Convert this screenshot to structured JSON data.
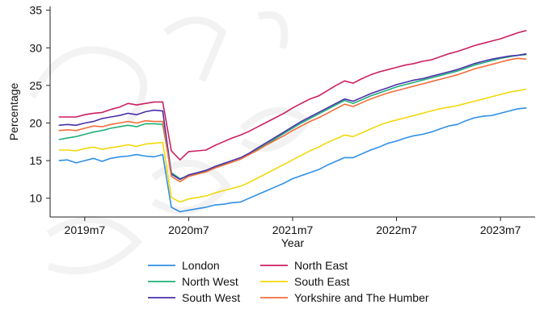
{
  "chart_data": {
    "type": "line",
    "xlabel": "Year",
    "ylabel": "Percentage",
    "x_tick_labels": [
      "2019m7",
      "2020m7",
      "2021m7",
      "2022m7",
      "2023m7"
    ],
    "x_tick_positions": [
      "2019-07",
      "2020-07",
      "2021-07",
      "2022-07",
      "2023-07"
    ],
    "ylim": [
      7.5,
      35.5
    ],
    "y_ticks": [
      10,
      15,
      20,
      25,
      30,
      35
    ],
    "grid": false,
    "legend_position": "bottom",
    "x": [
      "2019-04",
      "2019-05",
      "2019-06",
      "2019-07",
      "2019-08",
      "2019-09",
      "2019-10",
      "2019-11",
      "2019-12",
      "2020-01",
      "2020-02",
      "2020-03",
      "2020-04",
      "2020-05",
      "2020-06",
      "2020-07",
      "2020-08",
      "2020-09",
      "2020-10",
      "2020-11",
      "2020-12",
      "2021-01",
      "2021-02",
      "2021-03",
      "2021-04",
      "2021-05",
      "2021-06",
      "2021-07",
      "2021-08",
      "2021-09",
      "2021-10",
      "2021-11",
      "2021-12",
      "2022-01",
      "2022-02",
      "2022-03",
      "2022-04",
      "2022-05",
      "2022-06",
      "2022-07",
      "2022-08",
      "2022-09",
      "2022-10",
      "2022-11",
      "2022-12",
      "2023-01",
      "2023-02",
      "2023-03",
      "2023-04",
      "2023-05",
      "2023-06",
      "2023-07",
      "2023-08",
      "2023-09",
      "2023-10"
    ],
    "series": [
      {
        "name": "London",
        "color": "#2f8fe6",
        "values": [
          15.0,
          15.1,
          14.7,
          15.0,
          15.3,
          14.9,
          15.3,
          15.5,
          15.6,
          15.8,
          15.6,
          15.5,
          15.8,
          8.8,
          8.2,
          8.4,
          8.6,
          8.8,
          9.1,
          9.2,
          9.4,
          9.5,
          10.0,
          10.5,
          11.0,
          11.5,
          12.0,
          12.6,
          13.0,
          13.4,
          13.8,
          14.4,
          14.9,
          15.4,
          15.4,
          15.9,
          16.4,
          16.8,
          17.3,
          17.6,
          18.0,
          18.3,
          18.5,
          18.8,
          19.2,
          19.6,
          19.8,
          20.3,
          20.7,
          20.9,
          21.0,
          21.3,
          21.6,
          21.9,
          22.0
        ]
      },
      {
        "name": "North East",
        "color": "#cc1f62",
        "values": [
          20.8,
          20.8,
          20.8,
          21.1,
          21.3,
          21.4,
          21.8,
          22.1,
          22.6,
          22.4,
          22.6,
          22.8,
          22.8,
          16.3,
          15.1,
          16.2,
          16.3,
          16.4,
          17.0,
          17.5,
          18.0,
          18.4,
          18.9,
          19.5,
          20.1,
          20.7,
          21.3,
          22.0,
          22.6,
          23.2,
          23.6,
          24.3,
          25.0,
          25.6,
          25.3,
          25.9,
          26.4,
          26.8,
          27.1,
          27.4,
          27.7,
          27.9,
          28.2,
          28.4,
          28.8,
          29.2,
          29.5,
          29.9,
          30.3,
          30.6,
          30.9,
          31.2,
          31.6,
          32.0,
          32.3
        ]
      },
      {
        "name": "North West",
        "color": "#1fb07a",
        "values": [
          17.8,
          18.0,
          18.2,
          18.5,
          18.8,
          19.0,
          19.3,
          19.5,
          19.7,
          19.5,
          19.9,
          19.9,
          19.8,
          13.4,
          12.6,
          13.0,
          13.3,
          13.6,
          14.1,
          14.5,
          14.8,
          15.2,
          15.8,
          16.5,
          17.2,
          17.9,
          18.6,
          19.3,
          20.0,
          20.6,
          21.2,
          21.8,
          22.4,
          23.0,
          22.6,
          23.1,
          23.6,
          24.0,
          24.4,
          24.8,
          25.1,
          25.4,
          25.7,
          26.0,
          26.3,
          26.6,
          26.9,
          27.3,
          27.7,
          28.0,
          28.3,
          28.6,
          28.8,
          29.0,
          29.1
        ]
      },
      {
        "name": "South East",
        "color": "#f2d80b",
        "values": [
          16.4,
          16.4,
          16.3,
          16.6,
          16.8,
          16.5,
          16.7,
          16.9,
          17.1,
          16.9,
          17.2,
          17.3,
          17.4,
          10.1,
          9.5,
          9.9,
          10.1,
          10.3,
          10.7,
          11.0,
          11.3,
          11.6,
          12.1,
          12.7,
          13.3,
          13.9,
          14.5,
          15.1,
          15.7,
          16.3,
          16.8,
          17.4,
          17.9,
          18.4,
          18.2,
          18.7,
          19.2,
          19.7,
          20.1,
          20.4,
          20.7,
          21.0,
          21.3,
          21.6,
          21.9,
          22.1,
          22.3,
          22.6,
          22.9,
          23.2,
          23.5,
          23.8,
          24.1,
          24.3,
          24.5
        ]
      },
      {
        "name": "South West",
        "color": "#4a30a8",
        "values": [
          19.7,
          19.8,
          19.7,
          20.0,
          20.2,
          20.6,
          20.8,
          21.0,
          21.3,
          21.1,
          21.5,
          21.7,
          21.6,
          13.2,
          12.5,
          13.1,
          13.4,
          13.7,
          14.2,
          14.6,
          15.0,
          15.4,
          16.0,
          16.7,
          17.4,
          18.1,
          18.8,
          19.5,
          20.2,
          20.8,
          21.4,
          22.0,
          22.6,
          23.2,
          22.9,
          23.4,
          23.9,
          24.3,
          24.7,
          25.1,
          25.4,
          25.7,
          25.9,
          26.2,
          26.5,
          26.8,
          27.1,
          27.5,
          27.9,
          28.2,
          28.5,
          28.7,
          28.9,
          29.0,
          29.2
        ]
      },
      {
        "name": "Yorkshire and The Humber",
        "color": "#f36d3a",
        "values": [
          19.0,
          19.1,
          19.0,
          19.3,
          19.6,
          19.5,
          19.8,
          20.0,
          20.2,
          20.0,
          20.3,
          20.2,
          20.2,
          12.9,
          12.2,
          12.9,
          13.2,
          13.5,
          14.0,
          14.4,
          14.8,
          15.2,
          15.8,
          16.4,
          17.1,
          17.7,
          18.3,
          19.0,
          19.6,
          20.2,
          20.7,
          21.3,
          21.9,
          22.5,
          22.2,
          22.7,
          23.2,
          23.6,
          24.0,
          24.3,
          24.6,
          24.9,
          25.2,
          25.5,
          25.8,
          26.1,
          26.4,
          26.8,
          27.2,
          27.5,
          27.8,
          28.1,
          28.4,
          28.6,
          28.5
        ]
      }
    ],
    "legend_order": [
      0,
      1,
      2,
      3,
      4,
      5
    ]
  }
}
